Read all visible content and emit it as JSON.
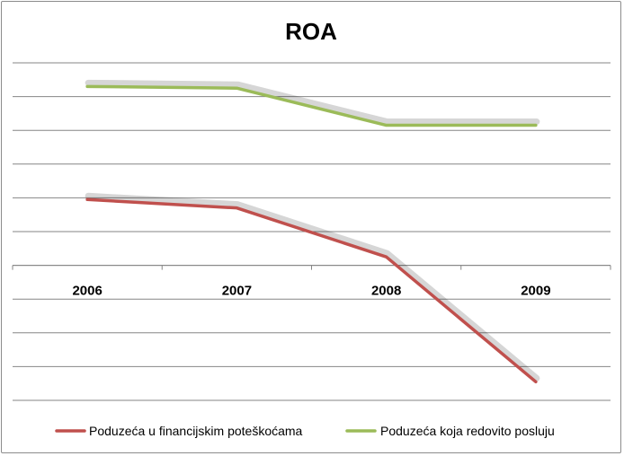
{
  "chart_data": {
    "type": "line",
    "title": "ROA",
    "xlabel": "",
    "ylabel": "",
    "categories": [
      "2006",
      "2007",
      "2008",
      "2009"
    ],
    "ylim": [
      -4,
      6
    ],
    "grid": true,
    "legend_position": "bottom",
    "series": [
      {
        "name": "Poduzeća u financijskim poteškoćama",
        "color": "#c0504d",
        "values": [
          1.95,
          1.7,
          0.25,
          -3.45
        ]
      },
      {
        "name": "Poduzeća koja redovito posluju",
        "color": "#9bbb59",
        "values": [
          5.3,
          5.25,
          4.15,
          4.15
        ]
      }
    ]
  }
}
